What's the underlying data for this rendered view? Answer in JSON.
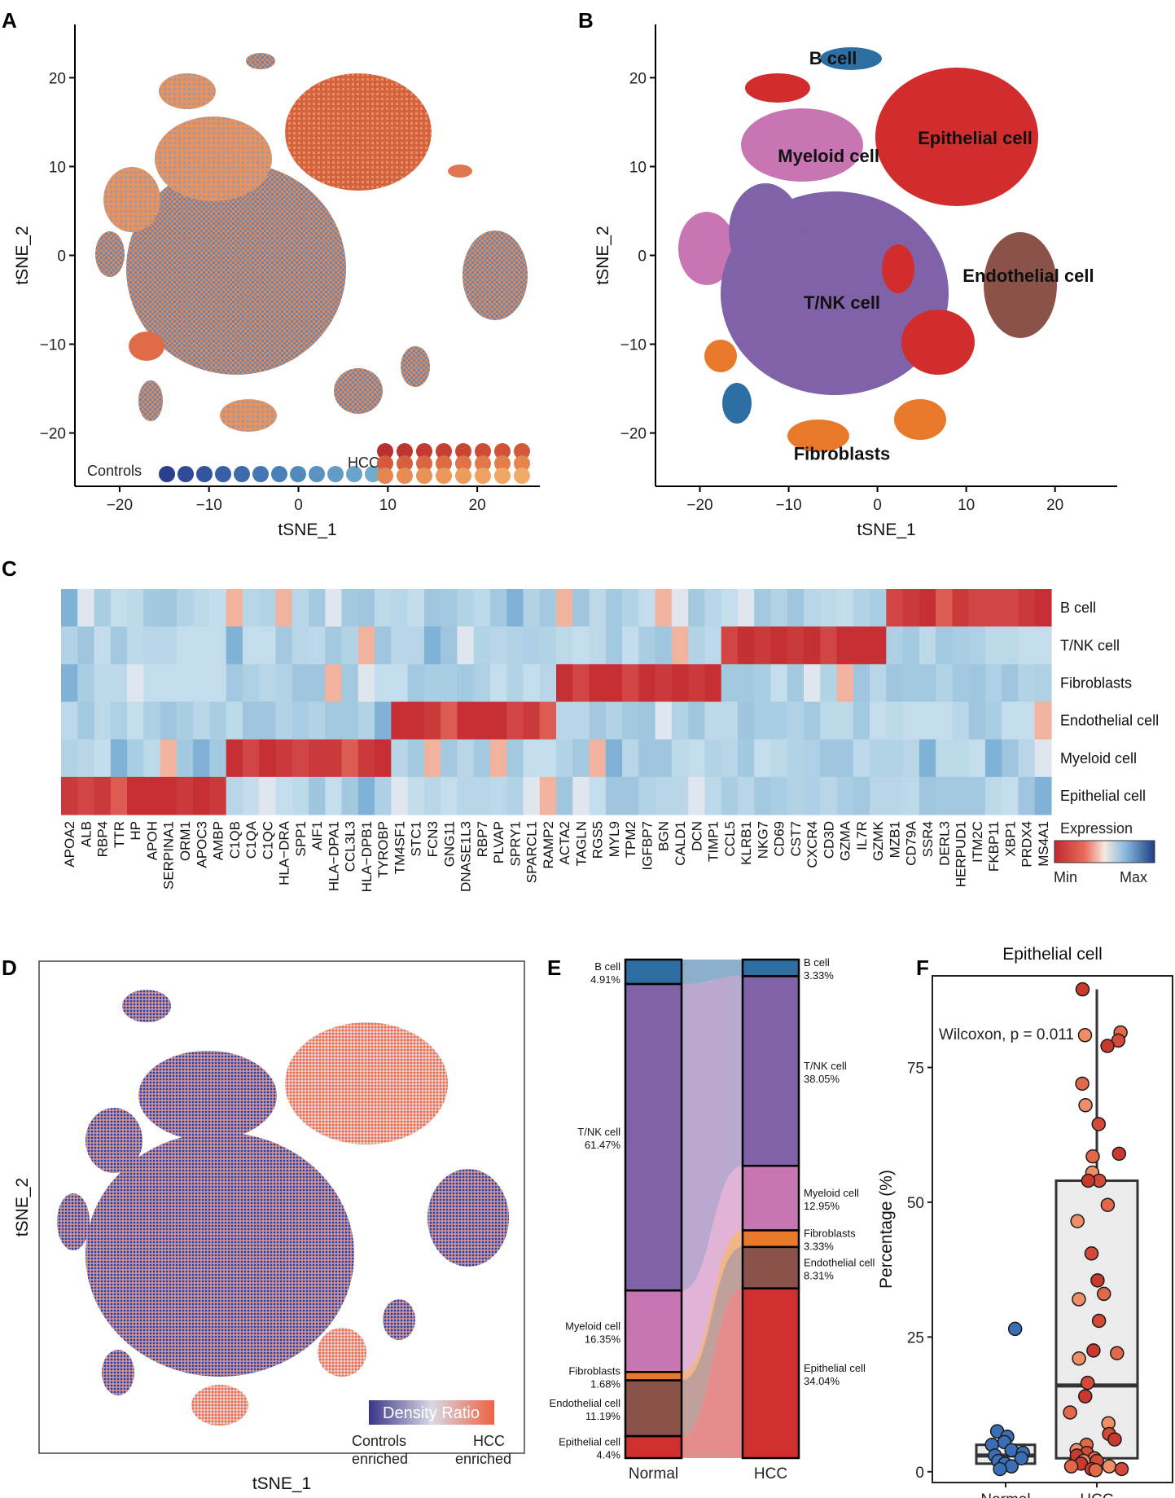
{
  "panels": {
    "A": {
      "letter": "A",
      "xlabel": "tSNE_1",
      "ylabel": "tSNE_2",
      "xticks": [
        -20,
        -10,
        0,
        10,
        20
      ],
      "yticks": [
        -20,
        -10,
        0,
        10,
        20
      ],
      "legend": {
        "controls": "Controls",
        "hccs": "HCCs"
      }
    },
    "B": {
      "letter": "B",
      "xlabel": "tSNE_1",
      "ylabel": "tSNE_2",
      "xticks": [
        -20,
        -10,
        0,
        10,
        20
      ],
      "yticks": [
        -20,
        -10,
        0,
        10,
        20
      ],
      "clusters": [
        "B cell",
        "Epithelial cell",
        "Myeloid cell",
        "Endothelial cell",
        "T/NK cell",
        "Fibroblasts"
      ]
    },
    "C": {
      "letter": "C",
      "legend_title": "Expression",
      "legend_min": "Min",
      "legend_max": "Max"
    },
    "D": {
      "letter": "D",
      "xlabel": "tSNE_1",
      "ylabel": "tSNE_2",
      "legend_title": "Density Ratio",
      "legend_left": "Controls\nenriched",
      "legend_left_1": "Controls",
      "legend_left_2": "enriched",
      "legend_right_1": "HCC",
      "legend_right_2": "enriched"
    },
    "E": {
      "letter": "E"
    },
    "F": {
      "letter": "F"
    }
  },
  "colors": {
    "b_cell": "#2e6fa3",
    "tnk": "#7f62a8",
    "myeloid": "#c875b4",
    "fibro": "#e8782a",
    "endo": "#8a5249",
    "epi": "#cf2f2f"
  },
  "chart_data": [
    {
      "type": "scatter",
      "panel": "A",
      "title": "",
      "xlabel": "tSNE_1",
      "ylabel": "tSNE_2",
      "xlim": [
        -25,
        27
      ],
      "ylim": [
        -26,
        26
      ],
      "series": [
        {
          "name": "Controls",
          "description": "blue shades"
        },
        {
          "name": "HCCs",
          "description": "red/orange shades"
        }
      ]
    },
    {
      "type": "scatter",
      "panel": "B",
      "xlabel": "tSNE_1",
      "ylabel": "tSNE_2",
      "xlim": [
        -25,
        27
      ],
      "ylim": [
        -26,
        26
      ],
      "annotations": [
        {
          "label": "B cell",
          "x": -5,
          "y": 21.5
        },
        {
          "label": "Epithelial cell",
          "x": 11,
          "y": 12.5
        },
        {
          "label": "Myeloid cell",
          "x": -5.5,
          "y": 10.5
        },
        {
          "label": "Endothelial cell",
          "x": 17,
          "y": -3
        },
        {
          "label": "T/NK cell",
          "x": -4,
          "y": -6
        },
        {
          "label": "Fibroblasts",
          "x": -4,
          "y": -23
        }
      ]
    },
    {
      "type": "heatmap",
      "panel": "C",
      "rows": [
        "B cell",
        "T/NK cell",
        "Fibroblasts",
        "Endothelial cell",
        "Myeloid cell",
        "Epithelial cell"
      ],
      "columns": [
        "APOA2",
        "ALB",
        "RBP4",
        "TTR",
        "HP",
        "APOH",
        "SERPINA1",
        "ORM1",
        "APOC3",
        "AMBP",
        "C1QB",
        "C1QA",
        "C1QC",
        "HLA−DRA",
        "SPP1",
        "AIF1",
        "HLA−DPA1",
        "CCL3L3",
        "HLA−DPB1",
        "TYROBP",
        "TM4SF1",
        "STC1",
        "FCN3",
        "GNG11",
        "DNASE1L3",
        "RBP7",
        "PLVAP",
        "SPRY1",
        "SPARCL1",
        "RAMP2",
        "ACTA2",
        "TAGLN",
        "RGS5",
        "MYL9",
        "TPM2",
        "IGFBP7",
        "BGN",
        "CALD1",
        "DCN",
        "TIMP1",
        "CCL5",
        "KLRB1",
        "NKG7",
        "CD69",
        "CST7",
        "CXCR4",
        "CD3D",
        "GZMA",
        "IL7R",
        "GZMK",
        "MZB1",
        "CD79A",
        "SSR4",
        "DERL3",
        "HERPUD1",
        "ITM2C",
        "FKBP11",
        "XBP1",
        "PRDX4",
        "MS4A1"
      ],
      "legend": {
        "title": "Expression",
        "min": "Min",
        "max": "Max"
      }
    },
    {
      "type": "scatter",
      "panel": "D",
      "xlabel": "tSNE_1",
      "ylabel": "tSNE_2",
      "legend": {
        "title": "Density Ratio",
        "left": "Controls enriched",
        "right": "HCC enriched"
      }
    },
    {
      "type": "bar",
      "panel": "E",
      "stacked": true,
      "categories": [
        "Normal",
        "HCC"
      ],
      "series": [
        {
          "name": "B cell",
          "values": [
            4.91,
            3.33
          ],
          "labels": [
            "4.91%",
            "3.33%"
          ]
        },
        {
          "name": "T/NK cell",
          "values": [
            61.47,
            38.05
          ],
          "labels": [
            "61.47%",
            "38.05%"
          ]
        },
        {
          "name": "Myeloid cell",
          "values": [
            16.35,
            12.95
          ],
          "labels": [
            "16.35%",
            "12.95%"
          ]
        },
        {
          "name": "Fibroblasts",
          "values": [
            1.68,
            3.33
          ],
          "labels": [
            "1.68%",
            "3.33%"
          ]
        },
        {
          "name": "Endothelial cell",
          "values": [
            11.19,
            8.31
          ],
          "labels": [
            "11.19%",
            "8.31%"
          ]
        },
        {
          "name": "Epithelial cell",
          "values": [
            4.4,
            34.04
          ],
          "labels": [
            "4.4%",
            "34.04%"
          ]
        }
      ]
    },
    {
      "type": "scatter",
      "panel": "F",
      "title": "Epithelial cell",
      "xlabel": "",
      "ylabel": "Percentage (%)",
      "categories": [
        "Normal",
        "HCC"
      ],
      "ylim": [
        -2,
        92
      ],
      "yticks": [
        0,
        25,
        50,
        75
      ],
      "annotation": "Wilcoxon, p = 0.011",
      "boxes": [
        {
          "name": "Normal",
          "q1": 1.5,
          "median": 3.0,
          "q3": 5.0,
          "whisker_low": 0.5,
          "whisker_high": 7.5
        },
        {
          "name": "HCC",
          "q1": 2.5,
          "median": 16.0,
          "q3": 54.0,
          "whisker_low": 0.3,
          "whisker_high": 89.5
        }
      ],
      "points_normal": [
        26.5,
        7.5,
        6.5,
        5.5,
        5.0,
        4.0,
        3.5,
        3.0,
        2.5,
        2.0,
        1.5,
        1.0,
        0.5
      ],
      "points_hcc": [
        89.5,
        81.5,
        81.0,
        80.0,
        79.0,
        72.0,
        68.0,
        64.5,
        59.0,
        58.5,
        55.5,
        54.0,
        54.0,
        49.5,
        46.5,
        40.5,
        35.5,
        33.0,
        32.0,
        28.0,
        22.5,
        22.0,
        21.0,
        16.5,
        14.0,
        11.0,
        9.0,
        7.0,
        6.0,
        5.0,
        4.0,
        3.5,
        3.0,
        2.5,
        2.0,
        2.0,
        1.5,
        1.0,
        1.0,
        0.5,
        0.5,
        0.3
      ]
    }
  ]
}
